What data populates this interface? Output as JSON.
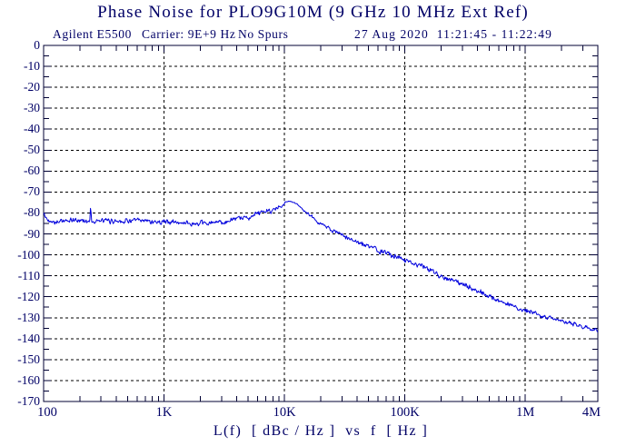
{
  "title": "Phase Noise for PLO9G10M (9 GHz 10 MHz Ext Ref)",
  "header": {
    "instrument": "Agilent E5500",
    "carrier": "Carrier: 9E+9 Hz",
    "spurs": "No Spurs",
    "datetime": "27 Aug 2020  11:21:45 - 11:22:49"
  },
  "colors": {
    "text_navy": "#000066",
    "axis": "#000033",
    "grid": "#000000",
    "trace": "#0000dd",
    "background": "#ffffff"
  },
  "chart_data": {
    "type": "line",
    "title": "Phase Noise for PLO9G10M (9 GHz 10 MHz Ext Ref)",
    "xlabel": "L(f)  [ dBc / Hz ]  vs  f  [ Hz ]",
    "ylabel": "",
    "x_scale": "log",
    "x_range_hz": [
      100,
      4000000
    ],
    "y_range_dbc": [
      -170,
      0
    ],
    "grid": "dashed",
    "legend": "none",
    "x_ticks": [
      {
        "f": 100,
        "label": "100"
      },
      {
        "f": 1000,
        "label": "1K"
      },
      {
        "f": 10000,
        "label": "10K"
      },
      {
        "f": 100000,
        "label": "100K"
      },
      {
        "f": 1000000,
        "label": "1M"
      },
      {
        "f": 4000000,
        "label": "4M"
      }
    ],
    "y_ticks": [
      {
        "db": 0,
        "label": "0"
      },
      {
        "db": -10,
        "label": "-10"
      },
      {
        "db": -20,
        "label": "-20"
      },
      {
        "db": -30,
        "label": "-30"
      },
      {
        "db": -40,
        "label": "-40"
      },
      {
        "db": -50,
        "label": "-50"
      },
      {
        "db": -60,
        "label": "-60"
      },
      {
        "db": -70,
        "label": "-70"
      },
      {
        "db": -80,
        "label": "-80"
      },
      {
        "db": -90,
        "label": "-90"
      },
      {
        "db": -100,
        "label": "-100"
      },
      {
        "db": -110,
        "label": "-110"
      },
      {
        "db": -120,
        "label": "-120"
      },
      {
        "db": -130,
        "label": "-130"
      },
      {
        "db": -140,
        "label": "-140"
      },
      {
        "db": -150,
        "label": "-150"
      },
      {
        "db": -160,
        "label": "-160"
      },
      {
        "db": -170,
        "label": "-170"
      }
    ],
    "series": [
      {
        "name": "phase-noise-trace",
        "color": "#0000dd",
        "control_points_hz_dbc": [
          [
            100,
            -80.5
          ],
          [
            108,
            -83.5
          ],
          [
            130,
            -84.0
          ],
          [
            200,
            -83.5
          ],
          [
            300,
            -84.0
          ],
          [
            500,
            -83.5
          ],
          [
            700,
            -83.8
          ],
          [
            1000,
            -84.2
          ],
          [
            1500,
            -84.8
          ],
          [
            2000,
            -85.2
          ],
          [
            3000,
            -84.6
          ],
          [
            4000,
            -83.3
          ],
          [
            5000,
            -81.8
          ],
          [
            6000,
            -80.4
          ],
          [
            7000,
            -79.3
          ],
          [
            8000,
            -78.2
          ],
          [
            9000,
            -76.9
          ],
          [
            10000,
            -75.3
          ],
          [
            11000,
            -74.3
          ],
          [
            12000,
            -74.9
          ],
          [
            13000,
            -76.3
          ],
          [
            14500,
            -78.6
          ],
          [
            16000,
            -80.9
          ],
          [
            18000,
            -83.2
          ],
          [
            20000,
            -85.2
          ],
          [
            25000,
            -88.3
          ],
          [
            30000,
            -90.8
          ],
          [
            40000,
            -93.8
          ],
          [
            50000,
            -96.2
          ],
          [
            60000,
            -97.9
          ],
          [
            80000,
            -100.2
          ],
          [
            100000,
            -102.2
          ],
          [
            130000,
            -104.8
          ],
          [
            160000,
            -107.2
          ],
          [
            200000,
            -109.7
          ],
          [
            250000,
            -112.2
          ],
          [
            300000,
            -114.2
          ],
          [
            400000,
            -117.2
          ],
          [
            500000,
            -119.7
          ],
          [
            600000,
            -121.7
          ],
          [
            700000,
            -123.3
          ],
          [
            800000,
            -124.6
          ],
          [
            1000000,
            -126.4
          ],
          [
            1300000,
            -128.6
          ],
          [
            1600000,
            -130.2
          ],
          [
            2000000,
            -131.7
          ],
          [
            2500000,
            -133.1
          ],
          [
            3000000,
            -134.2
          ],
          [
            4000000,
            -135.8
          ]
        ],
        "spur": {
          "f_hz": 246,
          "amplitude_db": 7.0
        },
        "noise_amplitude_db": [
          [
            100,
            1.1
          ],
          [
            2000,
            1.1
          ],
          [
            7000,
            1.3
          ],
          [
            9800,
            0.9
          ],
          [
            10500,
            0.2
          ],
          [
            13500,
            0.25
          ],
          [
            15000,
            0.8
          ],
          [
            20000,
            0.9
          ],
          [
            40000,
            1.0
          ],
          [
            80000,
            1.2
          ],
          [
            150000,
            1.2
          ],
          [
            400000,
            1.1
          ],
          [
            800000,
            1.0
          ],
          [
            1500000,
            0.9
          ],
          [
            4000000,
            0.9
          ]
        ],
        "noise_seed": 42
      }
    ]
  }
}
